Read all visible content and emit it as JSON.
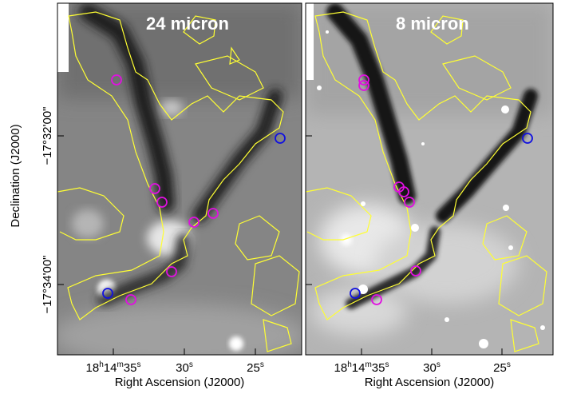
{
  "panels": [
    {
      "title": "24 micron"
    },
    {
      "title": "8 micron"
    }
  ],
  "axes": {
    "ylabel": "Declination (J2000)",
    "xlabel": "Right Ascension (J2000)",
    "yticks": [
      "−17°32'00\"",
      "−17°34'00\""
    ],
    "xticks": [
      "18h14m35s",
      "30s",
      "25s"
    ]
  },
  "colors": {
    "contour": "#ffff33",
    "marker_magenta": "#e010e0",
    "marker_blue": "#1010e0"
  }
}
